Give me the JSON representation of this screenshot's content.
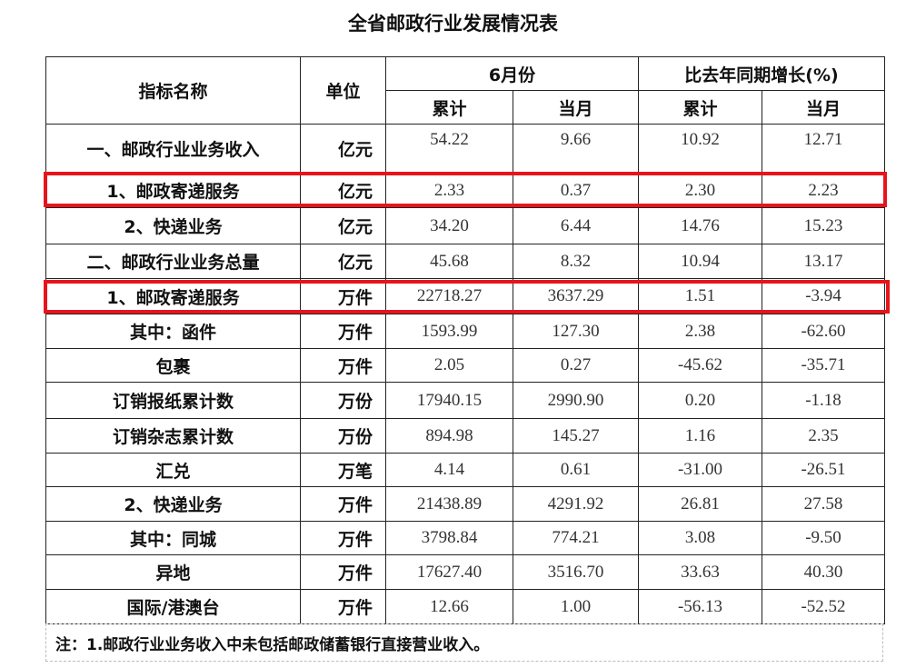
{
  "title": "全省邮政行业发展情况表",
  "header": {
    "name": "指标名称",
    "unit": "单位",
    "month_group": "6月份",
    "growth_group": "比去年同期增长(%)",
    "cumulative": "累计",
    "current_month": "当月"
  },
  "rows": [
    {
      "name": "一、邮政行业业务收入",
      "unit": "亿元",
      "cum": "54.22",
      "month": "9.66",
      "g_cum": "10.92",
      "g_month": "12.71"
    },
    {
      "name": "1、邮政寄递服务",
      "unit": "亿元",
      "cum": "2.33",
      "month": "0.37",
      "g_cum": "2.30",
      "g_month": "2.23",
      "highlighted": true
    },
    {
      "name": "2、快递业务",
      "unit": "亿元",
      "cum": "34.20",
      "month": "6.44",
      "g_cum": "14.76",
      "g_month": "15.23"
    },
    {
      "name": "二、邮政行业业务总量",
      "unit": "亿元",
      "cum": "45.68",
      "month": "8.32",
      "g_cum": "10.94",
      "g_month": "13.17"
    },
    {
      "name": "1、邮政寄递服务",
      "unit": "万件",
      "cum": "22718.27",
      "month": "3637.29",
      "g_cum": "1.51",
      "g_month": "-3.94",
      "highlighted": true
    },
    {
      "name": "其中：函件",
      "unit": "万件",
      "cum": "1593.99",
      "month": "127.30",
      "g_cum": "2.38",
      "g_month": "-62.60"
    },
    {
      "name": "包裹",
      "unit": "万件",
      "cum": "2.05",
      "month": "0.27",
      "g_cum": "-45.62",
      "g_month": "-35.71"
    },
    {
      "name": "订销报纸累计数",
      "unit": "万份",
      "cum": "17940.15",
      "month": "2990.90",
      "g_cum": "0.20",
      "g_month": "-1.18"
    },
    {
      "name": "订销杂志累计数",
      "unit": "万份",
      "cum": "894.98",
      "month": "145.27",
      "g_cum": "1.16",
      "g_month": "2.35"
    },
    {
      "name": "汇兑",
      "unit": "万笔",
      "cum": "4.14",
      "month": "0.61",
      "g_cum": "-31.00",
      "g_month": "-26.51"
    },
    {
      "name": "2、快递业务",
      "unit": "万件",
      "cum": "21438.89",
      "month": "4291.92",
      "g_cum": "26.81",
      "g_month": "27.58"
    },
    {
      "name": "其中：同城",
      "unit": "万件",
      "cum": "3798.84",
      "month": "774.21",
      "g_cum": "3.08",
      "g_month": "-9.50"
    },
    {
      "name": "异地",
      "unit": "万件",
      "cum": "17627.40",
      "month": "3516.70",
      "g_cum": "33.63",
      "g_month": "40.30"
    },
    {
      "name": "国际/港澳台",
      "unit": "万件",
      "cum": "12.66",
      "month": "1.00",
      "g_cum": "-56.13",
      "g_month": "-52.52"
    }
  ],
  "note": "注：1.邮政行业业务收入中未包括邮政储蓄银行直接营业收入。",
  "highlight_color": "#e8141c"
}
